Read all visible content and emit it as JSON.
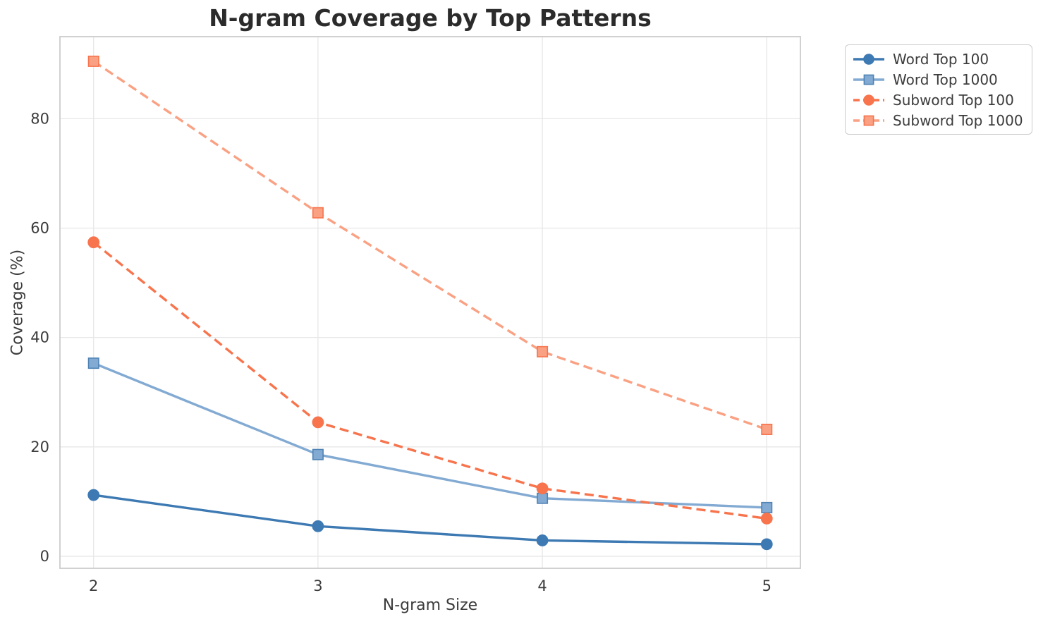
{
  "chart_data": {
    "type": "line",
    "title": "N-gram Coverage by Top Patterns",
    "xlabel": "N-gram Size",
    "ylabel": "Coverage (%)",
    "x": [
      2,
      3,
      4,
      5
    ],
    "xticks": [
      2,
      3,
      4,
      5
    ],
    "yticks": [
      0,
      20,
      40,
      60,
      80
    ],
    "xlim": [
      1.85,
      5.15
    ],
    "ylim": [
      -2.2,
      95.0
    ],
    "grid": true,
    "legend_position": "outside-right",
    "series": [
      {
        "name": "Word Top 100",
        "values": [
          11.2,
          5.5,
          2.9,
          2.2
        ],
        "color": "#3d79b2",
        "marker": "circle",
        "marker_edge": "#3d79b2",
        "line_style": "solid"
      },
      {
        "name": "Word Top 1000",
        "values": [
          35.3,
          18.6,
          10.6,
          8.9
        ],
        "color": "#82aad2",
        "marker": "square",
        "marker_edge": "#4f83b5",
        "line_style": "solid"
      },
      {
        "name": "Subword Top 100",
        "values": [
          57.4,
          24.5,
          12.4,
          6.9
        ],
        "color": "#f7744d",
        "marker": "circle",
        "marker_edge": "#f7744d",
        "line_style": "dashed"
      },
      {
        "name": "Subword Top 1000",
        "values": [
          90.5,
          62.8,
          37.4,
          23.2
        ],
        "color": "#faa183",
        "marker": "square",
        "marker_edge": "#f7744d",
        "line_style": "dashed"
      }
    ],
    "colors": {
      "background": "#ffffff",
      "grid": "#e7e7e7",
      "spine": "#cccccc",
      "title": "#2b2b2b",
      "text": "#3c3c3c"
    }
  }
}
